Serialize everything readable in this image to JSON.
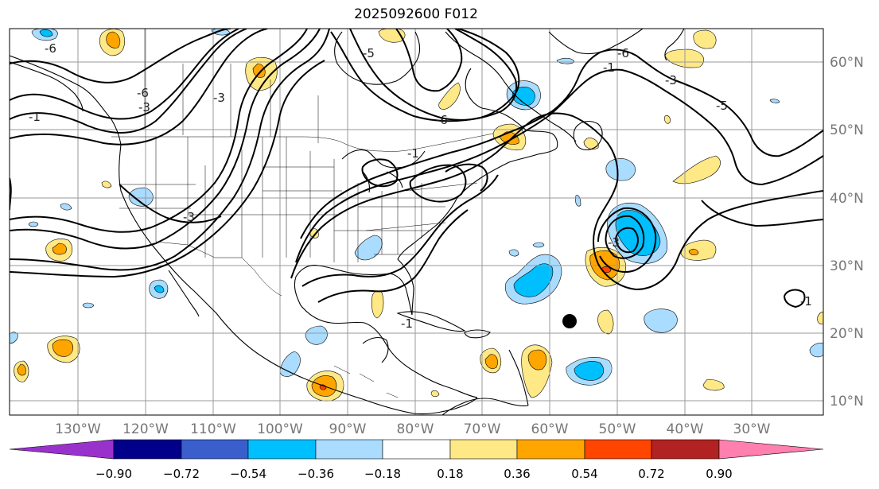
{
  "title": "2025092600 F012",
  "lon_labels": [
    "130°W",
    "120°W",
    "110°W",
    "100°W",
    "90°W",
    "80°W",
    "70°W",
    "60°W",
    "50°W",
    "40°W",
    "30°W"
  ],
  "lat_labels": [
    "60°N",
    "50°N",
    "40°N",
    "30°N",
    "20°N",
    "10°N"
  ],
  "contour_labels": [
    "-6",
    "-1",
    "-3",
    "-6",
    "-3",
    "-6",
    "-1",
    "-5",
    "-1",
    "-3",
    "-6",
    "-1",
    "-5",
    "-3",
    "-3",
    "-1"
  ],
  "colorbar": {
    "tick_labels": [
      "−0.90",
      "−0.72",
      "−0.54",
      "−0.36",
      "−0.18",
      "0.18",
      "0.36",
      "0.54",
      "0.72",
      "0.90"
    ],
    "colors": [
      "#9932cc",
      "#00008b",
      "#3a5fcd",
      "#00bfff",
      "#aadcff",
      "#ffffff",
      "#ffe886",
      "#ffa500",
      "#ff4500",
      "#b22222",
      "#ff7fae"
    ]
  },
  "colors": {
    "pos_light": "#ffe886",
    "pos_mid": "#ffa500",
    "pos_dark": "#ff4500",
    "neg_light": "#aadcff",
    "neg_mid": "#00bfff",
    "neg_dark": "#3a5fcd"
  }
}
